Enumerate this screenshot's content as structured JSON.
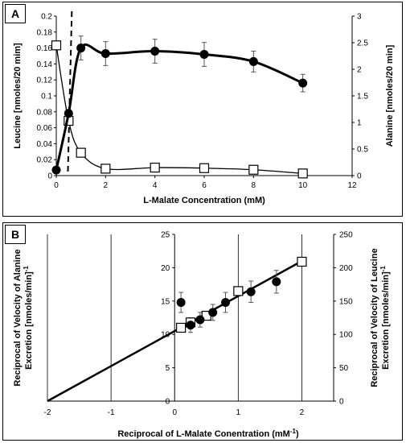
{
  "chart_data": [
    {
      "panel": "A",
      "type": "line",
      "xlabel": "L-Malate Concentration (mM)",
      "ylabel_left": "Leucine [nmoles/20 mim]",
      "ylabel_right": "Alanine [nmoles/20 min]",
      "xlim": [
        0,
        12
      ],
      "xticks": [
        0,
        2,
        4,
        6,
        8,
        10,
        12
      ],
      "ylim_left": [
        0,
        0.2
      ],
      "yticks_left": [
        0,
        0.02,
        0.04,
        0.06,
        0.08,
        0.1,
        0.12,
        0.14,
        0.16,
        0.18,
        0.2
      ],
      "ylim_right": [
        0,
        3
      ],
      "yticks_right": [
        0,
        0.5,
        1,
        1.5,
        2,
        2.5,
        3
      ],
      "dashed_vline_x": 0.5,
      "grid": false,
      "series": [
        {
          "marker": "filled-circle",
          "axis": "left",
          "x": [
            0,
            0.5,
            1,
            2,
            4,
            6,
            8,
            10
          ],
          "y": [
            0.007,
            0.078,
            0.16,
            0.153,
            0.156,
            0.152,
            0.143,
            0.116
          ],
          "err": [
            0,
            0,
            0.015,
            0.015,
            0.015,
            0.015,
            0.013,
            0.011
          ]
        },
        {
          "marker": "open-square",
          "axis": "right",
          "x": [
            0,
            0.5,
            1,
            2,
            4,
            6,
            8,
            10
          ],
          "y": [
            2.45,
            1.03,
            0.43,
            0.13,
            0.15,
            0.14,
            0.11,
            0.04
          ]
        }
      ]
    },
    {
      "panel": "B",
      "type": "scatter",
      "xlabel": "Reciprocal of L-Malate Conentration (mM",
      "xlabel_sup": "-1",
      "xlabel_close": ")",
      "ylabel_left_line1": "Reciprocal of Velocity of Alanine",
      "ylabel_left_line2": "Excretion [nmoles/min]",
      "ylabel_left_sup": "-1",
      "ylabel_right_line1": "Reciprocal of Velocity of Leucine",
      "ylabel_right_line2": "Excretion [nmoles/min]",
      "ylabel_right_sup": "-1",
      "xlim": [
        -2,
        2.5
      ],
      "xticks": [
        -2,
        -1,
        0,
        1,
        2
      ],
      "ylim_left": [
        0,
        25
      ],
      "yticks_left": [
        0,
        5,
        10,
        15,
        20,
        25
      ],
      "ylim_right": [
        0,
        250
      ],
      "yticks_right": [
        0,
        50,
        100,
        150,
        200,
        250
      ],
      "grid": "vertical",
      "fit_line": {
        "x": [
          -2,
          2
        ],
        "y": [
          0,
          21
        ]
      },
      "series": [
        {
          "marker": "filled-circle",
          "axis": "left",
          "x": [
            0.1,
            0.25,
            0.4,
            0.6,
            0.8,
            1.2,
            1.6
          ],
          "y": [
            14.8,
            11.4,
            12.2,
            13.3,
            14.8,
            16.4,
            17.9
          ],
          "err": [
            1.5,
            1.1,
            1.1,
            1.2,
            1.5,
            1.6,
            1.7
          ]
        },
        {
          "marker": "open-square",
          "axis": "right",
          "x": [
            0.1,
            0.25,
            0.5,
            1,
            2
          ],
          "y": [
            110,
            118,
            128,
            165,
            209
          ]
        }
      ]
    }
  ],
  "panels": {
    "a_badge": "A",
    "b_badge": "B"
  }
}
